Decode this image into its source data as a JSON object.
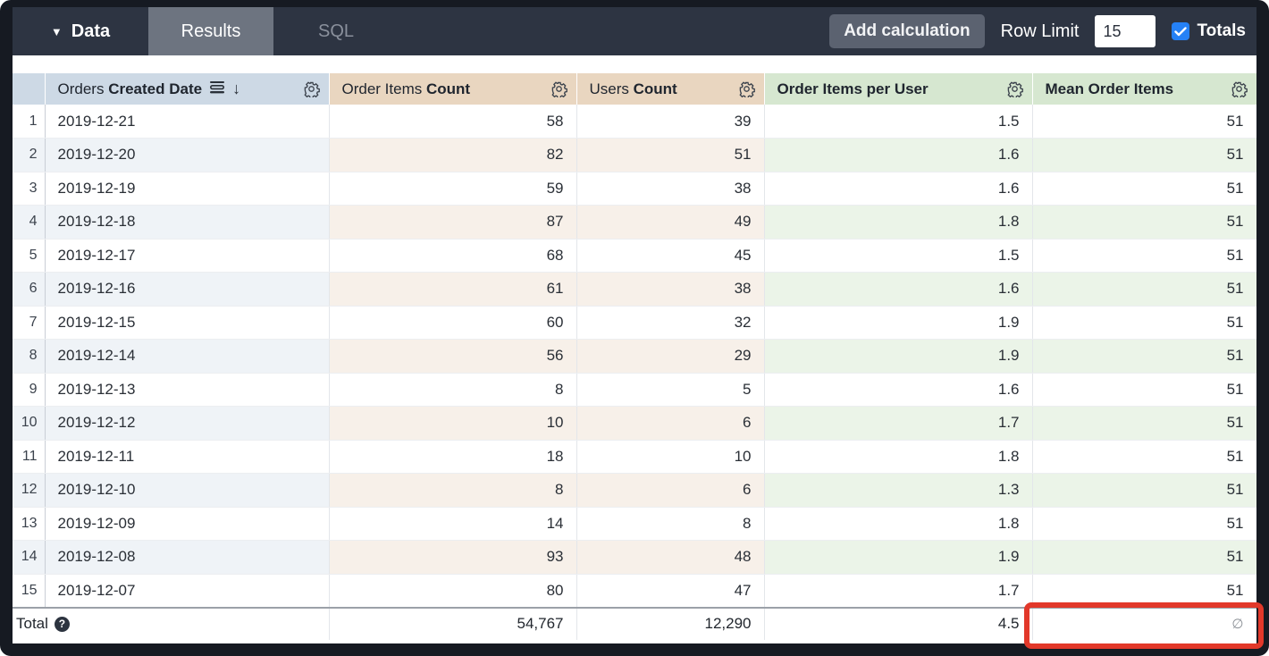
{
  "topbar": {
    "data_label": "Data",
    "tabs": [
      {
        "label": "Results",
        "active": true
      },
      {
        "label": "SQL",
        "active": false
      }
    ],
    "add_calculation_label": "Add calculation",
    "row_limit_label": "Row Limit",
    "row_limit_value": "15",
    "totals_label": "Totals",
    "totals_checked": true
  },
  "table": {
    "columns": [
      {
        "label_regular": "Orders ",
        "label_bold": "Created Date",
        "type": "dimension",
        "sorted_desc": true
      },
      {
        "label_regular": "Order Items ",
        "label_bold": "Count",
        "type": "measure"
      },
      {
        "label_regular": "Users ",
        "label_bold": "Count",
        "type": "measure"
      },
      {
        "label_regular": "",
        "label_bold": "Order Items per User",
        "type": "table_calculation"
      },
      {
        "label_regular": "",
        "label_bold": "Mean Order Items",
        "type": "table_calculation"
      }
    ],
    "rows": [
      {
        "n": "1",
        "date": "2019-12-21",
        "order_items": "58",
        "users": "39",
        "per_user": "1.5",
        "mean": "51"
      },
      {
        "n": "2",
        "date": "2019-12-20",
        "order_items": "82",
        "users": "51",
        "per_user": "1.6",
        "mean": "51"
      },
      {
        "n": "3",
        "date": "2019-12-19",
        "order_items": "59",
        "users": "38",
        "per_user": "1.6",
        "mean": "51"
      },
      {
        "n": "4",
        "date": "2019-12-18",
        "order_items": "87",
        "users": "49",
        "per_user": "1.8",
        "mean": "51"
      },
      {
        "n": "5",
        "date": "2019-12-17",
        "order_items": "68",
        "users": "45",
        "per_user": "1.5",
        "mean": "51"
      },
      {
        "n": "6",
        "date": "2019-12-16",
        "order_items": "61",
        "users": "38",
        "per_user": "1.6",
        "mean": "51"
      },
      {
        "n": "7",
        "date": "2019-12-15",
        "order_items": "60",
        "users": "32",
        "per_user": "1.9",
        "mean": "51"
      },
      {
        "n": "8",
        "date": "2019-12-14",
        "order_items": "56",
        "users": "29",
        "per_user": "1.9",
        "mean": "51"
      },
      {
        "n": "9",
        "date": "2019-12-13",
        "order_items": "8",
        "users": "5",
        "per_user": "1.6",
        "mean": "51"
      },
      {
        "n": "10",
        "date": "2019-12-12",
        "order_items": "10",
        "users": "6",
        "per_user": "1.7",
        "mean": "51"
      },
      {
        "n": "11",
        "date": "2019-12-11",
        "order_items": "18",
        "users": "10",
        "per_user": "1.8",
        "mean": "51"
      },
      {
        "n": "12",
        "date": "2019-12-10",
        "order_items": "8",
        "users": "6",
        "per_user": "1.3",
        "mean": "51"
      },
      {
        "n": "13",
        "date": "2019-12-09",
        "order_items": "14",
        "users": "8",
        "per_user": "1.8",
        "mean": "51"
      },
      {
        "n": "14",
        "date": "2019-12-08",
        "order_items": "93",
        "users": "48",
        "per_user": "1.9",
        "mean": "51"
      },
      {
        "n": "15",
        "date": "2019-12-07",
        "order_items": "80",
        "users": "47",
        "per_user": "1.7",
        "mean": "51"
      }
    ],
    "total": {
      "label": "Total",
      "order_items": "54,767",
      "users": "12,290",
      "per_user": "4.5",
      "mean": "∅"
    }
  },
  "colors": {
    "topbar_bg": "#2d3442",
    "active_tab_bg": "#6d7480",
    "dimension_header_bg": "#cdd9e5",
    "measure_header_bg": "#e9d6c0",
    "calculation_header_bg": "#d6e7d0",
    "checkbox_blue": "#2581f6",
    "annotation_red": "#e2382a"
  }
}
